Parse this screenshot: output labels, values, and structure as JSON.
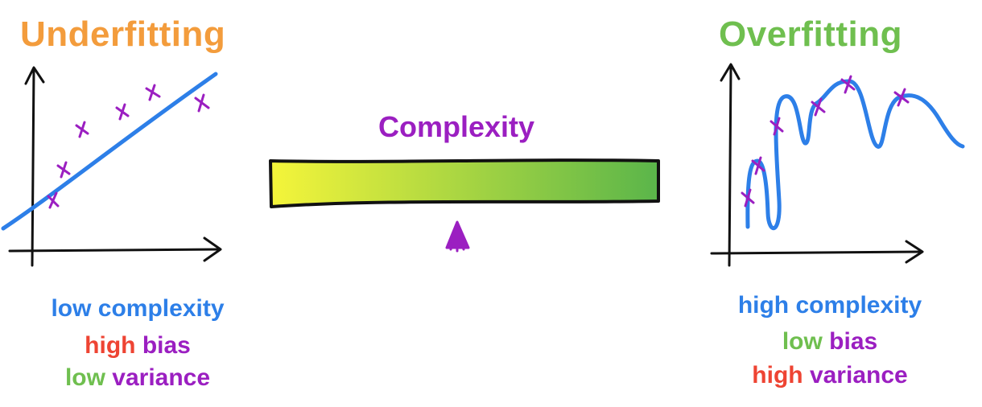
{
  "underfitting": {
    "title": "Underfitting",
    "desc": {
      "line1": "low complexity",
      "line2_a": "high",
      "line2_b": "bias",
      "line3_a": "low",
      "line3_b": "variance"
    }
  },
  "overfitting": {
    "title": "Overfitting",
    "desc": {
      "line1": "high complexity",
      "line2_a": "low",
      "line2_b": "bias",
      "line3_a": "high",
      "line3_b": "variance"
    }
  },
  "slider": {
    "label": "Complexity",
    "gradient_start": "#f5f53a",
    "gradient_end": "#5ab54a"
  },
  "colors": {
    "orange": "#f39c3c",
    "green": "#6fbf4f",
    "blue": "#2d7fe8",
    "red": "#ee4433",
    "purple": "#9b1fc1"
  },
  "icons": [
    "arrow-up-icon",
    "cross-marker-icon",
    "pointer-arrow-icon"
  ]
}
